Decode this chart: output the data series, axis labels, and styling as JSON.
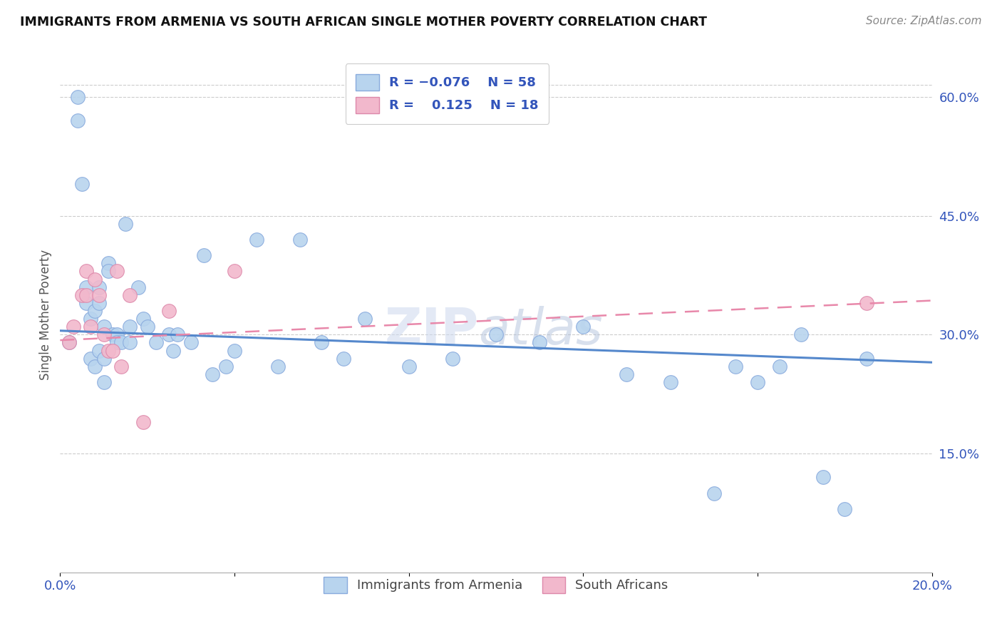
{
  "title": "IMMIGRANTS FROM ARMENIA VS SOUTH AFRICAN SINGLE MOTHER POVERTY CORRELATION CHART",
  "source": "Source: ZipAtlas.com",
  "ylabel": "Single Mother Poverty",
  "x_min": 0.0,
  "x_max": 0.2,
  "y_min": 0.0,
  "y_max": 0.65,
  "y_ticks_right": [
    0.15,
    0.3,
    0.45,
    0.6
  ],
  "y_tick_labels_right": [
    "15.0%",
    "30.0%",
    "45.0%",
    "60.0%"
  ],
  "color_armenia": "#b8d4ee",
  "color_south_africa": "#f2b8cc",
  "color_line_armenia": "#5588cc",
  "color_line_sa": "#e888aa",
  "watermark": "ZIPatlas",
  "armenia_x": [
    0.002,
    0.004,
    0.004,
    0.005,
    0.006,
    0.006,
    0.007,
    0.007,
    0.008,
    0.008,
    0.009,
    0.009,
    0.009,
    0.01,
    0.01,
    0.01,
    0.011,
    0.011,
    0.012,
    0.013,
    0.013,
    0.014,
    0.015,
    0.016,
    0.016,
    0.018,
    0.019,
    0.02,
    0.022,
    0.025,
    0.026,
    0.027,
    0.03,
    0.033,
    0.035,
    0.038,
    0.04,
    0.045,
    0.05,
    0.055,
    0.06,
    0.065,
    0.07,
    0.08,
    0.09,
    0.1,
    0.11,
    0.12,
    0.13,
    0.14,
    0.15,
    0.155,
    0.16,
    0.165,
    0.17,
    0.175,
    0.18,
    0.185
  ],
  "armenia_y": [
    0.29,
    0.6,
    0.57,
    0.49,
    0.36,
    0.34,
    0.32,
    0.27,
    0.33,
    0.26,
    0.36,
    0.34,
    0.28,
    0.31,
    0.27,
    0.24,
    0.39,
    0.38,
    0.3,
    0.3,
    0.29,
    0.29,
    0.44,
    0.31,
    0.29,
    0.36,
    0.32,
    0.31,
    0.29,
    0.3,
    0.28,
    0.3,
    0.29,
    0.4,
    0.25,
    0.26,
    0.28,
    0.42,
    0.26,
    0.42,
    0.29,
    0.27,
    0.32,
    0.26,
    0.27,
    0.3,
    0.29,
    0.31,
    0.25,
    0.24,
    0.1,
    0.26,
    0.24,
    0.26,
    0.3,
    0.12,
    0.08,
    0.27
  ],
  "sa_x": [
    0.002,
    0.003,
    0.005,
    0.006,
    0.006,
    0.007,
    0.008,
    0.009,
    0.01,
    0.011,
    0.012,
    0.013,
    0.014,
    0.016,
    0.019,
    0.025,
    0.04,
    0.185
  ],
  "sa_y": [
    0.29,
    0.31,
    0.35,
    0.38,
    0.35,
    0.31,
    0.37,
    0.35,
    0.3,
    0.28,
    0.28,
    0.38,
    0.26,
    0.35,
    0.19,
    0.33,
    0.38,
    0.34
  ],
  "line_armenia_x0": 0.0,
  "line_armenia_y0": 0.305,
  "line_armenia_x1": 0.2,
  "line_armenia_y1": 0.265,
  "line_sa_x0": 0.0,
  "line_sa_y0": 0.293,
  "line_sa_x1": 0.2,
  "line_sa_y1": 0.343
}
